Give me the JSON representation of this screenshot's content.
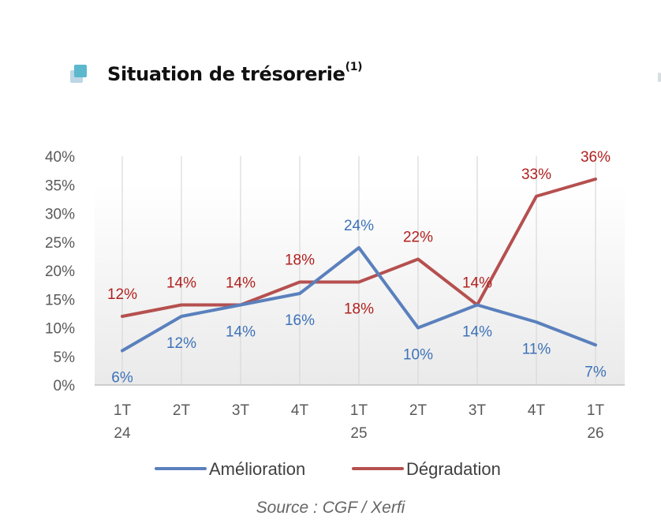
{
  "title": "Situation de trésorerie",
  "title_superscript": "(1)",
  "source": "Source : CGF / Xerfi",
  "icons": {
    "bullet": "square-bullet-icon"
  },
  "colors": {
    "amelioration": "#5a80bd",
    "degradation": "#b5504f",
    "amelioration_label": "#3d72b8",
    "degradation_label": "#b0201e",
    "bullet": "#5cb8cc"
  },
  "chart_data": {
    "type": "line",
    "categories": [
      "1T 24",
      "2T",
      "3T",
      "4T",
      "1T 25",
      "2T",
      "3T",
      "4T",
      "1T 26"
    ],
    "x_tick_labels": [
      [
        "1T",
        "24"
      ],
      [
        "2T"
      ],
      [
        "3T"
      ],
      [
        "4T"
      ],
      [
        "1T",
        "25"
      ],
      [
        "2T"
      ],
      [
        "3T"
      ],
      [
        "4T"
      ],
      [
        "1T",
        "26"
      ]
    ],
    "y_ticks": [
      "0%",
      "5%",
      "10%",
      "15%",
      "20%",
      "25%",
      "30%",
      "35%",
      "40%"
    ],
    "ylim": [
      0,
      40
    ],
    "y_unit": "%",
    "grid": "vertical",
    "legend_position": "bottom",
    "series": [
      {
        "name": "Amélioration",
        "values": [
          6,
          12,
          14,
          16,
          24,
          10,
          14,
          11,
          7
        ],
        "labels": [
          "6%",
          "12%",
          "14%",
          "16%",
          "24%",
          "10%",
          "14%",
          "11%",
          "7%"
        ]
      },
      {
        "name": "Dégradation",
        "values": [
          12,
          14,
          14,
          18,
          18,
          22,
          14,
          33,
          36
        ],
        "labels": [
          "12%",
          "14%",
          "14%",
          "18%",
          "18%",
          "22%",
          "14%",
          "33%",
          "36%"
        ]
      }
    ]
  }
}
